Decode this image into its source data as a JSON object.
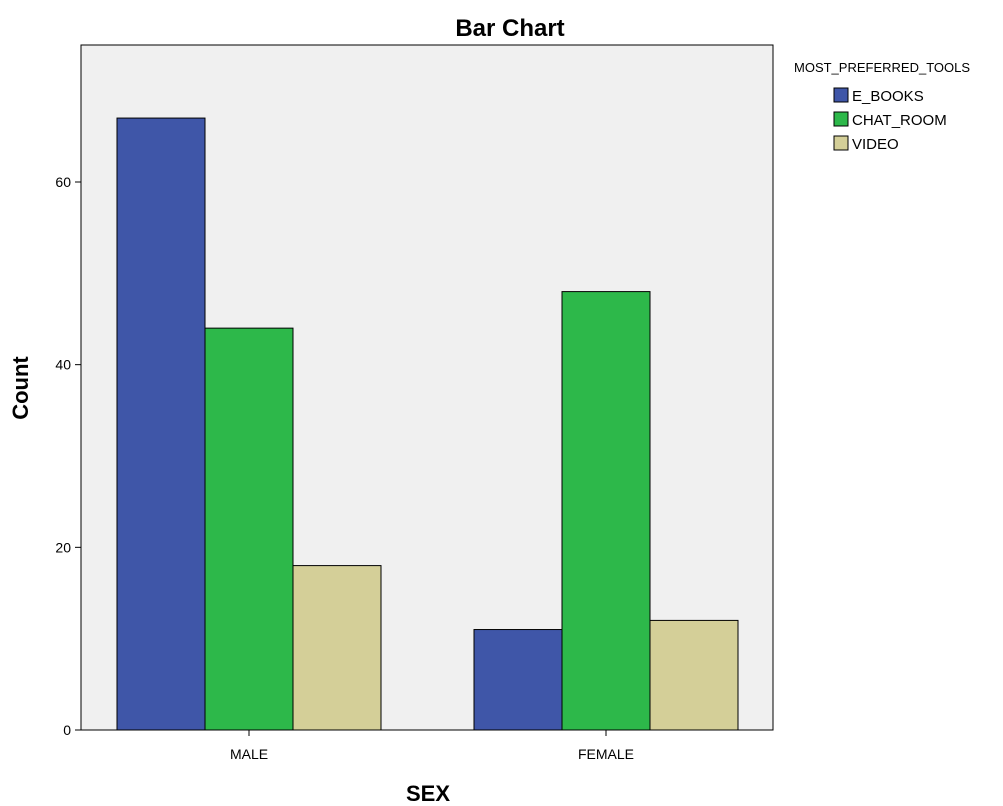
{
  "chart_data": {
    "type": "bar",
    "title": "Bar Chart",
    "xlabel": "SEX",
    "ylabel": "Count",
    "categories": [
      "MALE",
      "FEMALE"
    ],
    "series": [
      {
        "name": "E_BOOKS",
        "values": [
          67,
          11
        ],
        "color": "#3f56a8"
      },
      {
        "name": "CHAT_ROOM",
        "values": [
          44,
          48
        ],
        "color": "#2db84a"
      },
      {
        "name": "VIDEO",
        "values": [
          18,
          12
        ],
        "color": "#d4cf98"
      }
    ],
    "ylim": [
      0,
      75
    ],
    "yticks": [
      0,
      20,
      40,
      60
    ],
    "legend": {
      "title": "MOST_PREFERRED_TOOLS",
      "placement": "top-right"
    },
    "grid": false,
    "plot_background": "#f0f0f0"
  }
}
